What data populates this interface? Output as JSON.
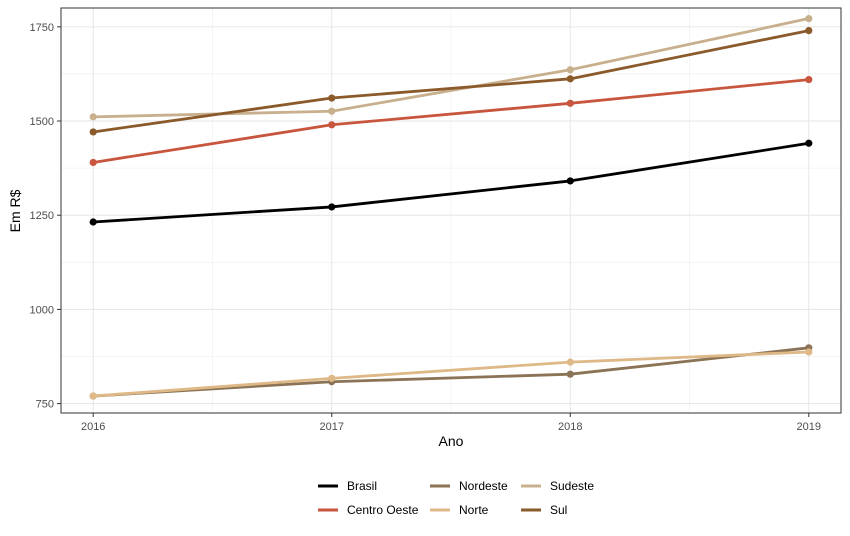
{
  "chart_data": {
    "type": "line",
    "x": [
      2016,
      2017,
      2018,
      2019
    ],
    "xlabel": "Ano",
    "ylabel": "Em R$",
    "ylim": [
      725,
      1800
    ],
    "yticks": [
      750,
      1000,
      1250,
      1500,
      1750
    ],
    "grid": true,
    "legend_position": "bottom",
    "series": [
      {
        "name": "Brasil",
        "color": "#000000",
        "values": [
          1232,
          1272,
          1341,
          1441
        ]
      },
      {
        "name": "Centro Oeste",
        "color": "#c8553d",
        "values": [
          1390,
          1490,
          1547,
          1610
        ]
      },
      {
        "name": "Nordeste",
        "color": "#8b7355",
        "values": [
          770,
          808,
          828,
          898
        ]
      },
      {
        "name": "Norte",
        "color": "#deb887",
        "values": [
          770,
          817,
          860,
          887
        ]
      },
      {
        "name": "Sudeste",
        "color": "#c8b08e",
        "values": [
          1511,
          1526,
          1636,
          1772
        ]
      },
      {
        "name": "Sul",
        "color": "#8b5a2b",
        "values": [
          1471,
          1561,
          1612,
          1740
        ]
      }
    ]
  }
}
